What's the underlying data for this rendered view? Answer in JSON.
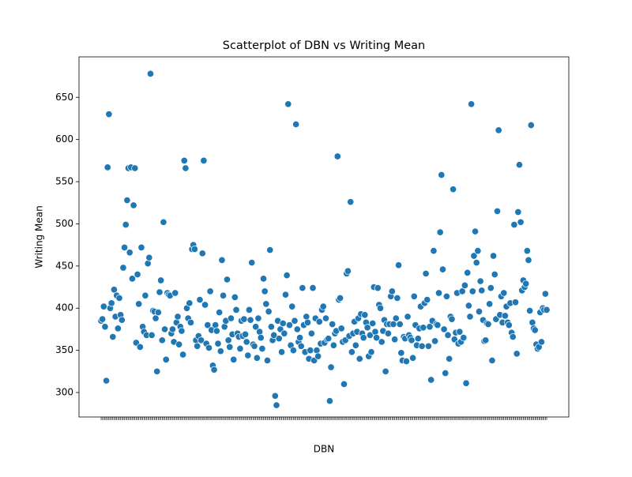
{
  "chart_data": {
    "type": "scatter",
    "title": "Scatterplot of DBN vs Writing Mean",
    "xlabel": "DBN",
    "ylabel": "Writing Mean",
    "color": "#1f77b4",
    "ylim": [
      271,
      698
    ],
    "yticks": [
      300,
      350,
      400,
      450,
      500,
      550,
      600,
      650
    ],
    "categories": [
      null,
      null,
      null,
      null,
      null,
      null,
      null,
      null,
      null,
      null,
      null,
      null,
      null,
      null,
      null,
      null,
      null,
      null,
      null,
      null,
      null,
      null,
      null,
      null,
      null,
      null,
      null,
      null,
      null,
      null,
      null,
      null,
      null,
      null,
      null,
      null,
      null,
      null,
      null,
      null,
      null,
      null,
      null,
      null,
      null,
      null,
      null,
      null,
      null,
      null,
      null,
      null,
      null,
      null,
      null,
      null,
      null,
      null,
      null,
      null,
      null,
      null,
      null,
      null,
      null,
      null,
      null,
      null,
      null,
      null,
      null,
      null,
      null,
      null,
      null,
      null,
      null,
      null,
      null,
      null,
      null,
      null,
      null,
      null,
      null,
      null,
      null,
      null,
      null,
      null,
      null,
      null,
      null,
      null,
      null,
      null,
      null,
      null,
      null,
      null,
      null,
      null,
      null,
      null,
      null,
      null,
      null,
      null,
      null,
      null,
      null,
      null,
      null,
      null,
      null,
      null,
      null,
      null,
      null,
      null,
      null,
      null,
      null,
      null,
      null,
      null,
      null,
      null,
      null,
      null,
      null,
      null,
      null,
      null,
      null,
      null,
      null,
      null,
      null,
      null,
      null,
      null,
      null,
      null,
      null,
      null,
      null,
      null,
      null,
      null,
      null,
      null,
      null,
      null,
      null,
      null,
      null,
      null,
      null,
      null,
      null,
      null,
      null,
      null,
      null,
      null,
      null,
      null,
      null,
      null,
      null,
      null,
      null,
      null,
      null,
      null,
      null,
      null,
      null,
      null,
      null,
      null,
      null,
      null,
      null,
      null,
      null,
      null,
      null,
      null,
      null,
      null,
      null,
      null,
      null,
      null,
      null,
      null,
      null,
      null,
      null,
      null,
      null,
      null,
      null,
      null,
      null,
      null,
      null,
      null,
      null,
      null,
      null,
      null,
      null,
      null,
      null,
      null,
      null,
      null,
      null,
      null,
      null,
      null,
      null,
      null,
      null,
      null,
      null,
      null,
      null,
      null,
      null,
      null,
      null,
      null,
      null,
      null,
      null,
      null,
      null,
      null,
      null,
      null,
      null,
      null,
      null,
      null,
      null,
      null,
      null,
      null,
      null,
      null,
      null,
      null,
      null,
      null,
      null,
      null,
      null,
      null,
      null,
      null,
      null,
      null,
      null,
      null,
      null,
      null,
      null,
      null,
      null,
      null,
      null,
      null,
      null,
      null,
      null,
      null,
      null,
      null,
      null,
      null,
      null,
      null,
      null,
      null,
      null,
      null,
      null,
      null,
      null,
      null,
      null,
      null,
      null,
      null,
      null,
      null,
      null,
      null,
      null,
      null,
      null,
      null,
      null,
      null,
      null,
      null,
      null,
      null,
      null,
      null,
      null,
      null,
      null,
      null,
      null,
      null,
      null,
      null,
      null,
      null,
      null,
      null,
      null,
      null,
      null,
      null,
      null,
      null,
      null,
      null,
      null,
      null,
      null,
      null,
      null,
      null,
      null,
      null,
      null,
      null
    ],
    "values": [
      385,
      387,
      402,
      378,
      314,
      567,
      630,
      400,
      406,
      366,
      422,
      390,
      415,
      376,
      412,
      392,
      386,
      448,
      472,
      499,
      528,
      566,
      466,
      567,
      435,
      522,
      566,
      359,
      440,
      405,
      354,
      472,
      378,
      372,
      415,
      368,
      453,
      460,
      678,
      368,
      397,
      396,
      388,
      325,
      395,
      419,
      433,
      362,
      502,
      375,
      339,
      418,
      416,
      415,
      370,
      375,
      360,
      418,
      383,
      390,
      357,
      378,
      373,
      345,
      575,
      566,
      400,
      388,
      406,
      383,
      470,
      475,
      470,
      362,
      355,
      367,
      410,
      362,
      465,
      575,
      404,
      358,
      380,
      353,
      420,
      374,
      332,
      327,
      380,
      373,
      358,
      395,
      349,
      457,
      415,
      378,
      385,
      434,
      362,
      354,
      388,
      369,
      339,
      413,
      398,
      370,
      366,
      352,
      385,
      367,
      387,
      369,
      360,
      344,
      398,
      386,
      454,
      357,
      355,
      378,
      341,
      388,
      372,
      365,
      352,
      435,
      420,
      405,
      338,
      396,
      469,
      378,
      362,
      368,
      296,
      285,
      385,
      364,
      375,
      348,
      382,
      370,
      416,
      439,
      642,
      380,
      356,
      402,
      350,
      385,
      618,
      375,
      360,
      365,
      355,
      424,
      380,
      348,
      390,
      383,
      340,
      350,
      370,
      424,
      338,
      388,
      350,
      343,
      384,
      358,
      398,
      402,
      359,
      388,
      363,
      364,
      290,
      330,
      381,
      356,
      370,
      373,
      580,
      410,
      412,
      376,
      360,
      310,
      362,
      441,
      444,
      367,
      526,
      348,
      370,
      384,
      356,
      372,
      388,
      340,
      393,
      370,
      365,
      392,
      383,
      377,
      343,
      368,
      348,
      382,
      425,
      372,
      365,
      424,
      404,
      400,
      360,
      373,
      386,
      325,
      381,
      370,
      381,
      414,
      420,
      381,
      363,
      388,
      412,
      451,
      381,
      347,
      338,
      366,
      364,
      337,
      390,
      368,
      365,
      362,
      341,
      414,
      380,
      356,
      364,
      376,
      402,
      355,
      377,
      406,
      441,
      410,
      355,
      378,
      315,
      385,
      468,
      361,
      381,
      380,
      418,
      490,
      558,
      446,
      375,
      323,
      414,
      368,
      340,
      390,
      387,
      541,
      363,
      371,
      418,
      358,
      372,
      360,
      420,
      365,
      427,
      311,
      442,
      403,
      390,
      642,
      420,
      462,
      491,
      454,
      468,
      396,
      432,
      421,
      386,
      361,
      362,
      382,
      381,
      405,
      424,
      338,
      462,
      440,
      387,
      515,
      611,
      392,
      414,
      383,
      418,
      391,
      402,
      383,
      380,
      406,
      371,
      366,
      499,
      407,
      346,
      514,
      570,
      502,
      421,
      433,
      425,
      429,
      468,
      457,
      397,
      617,
      383,
      376,
      374,
      357,
      352,
      354,
      395,
      360,
      400,
      398,
      417,
      398
    ]
  }
}
